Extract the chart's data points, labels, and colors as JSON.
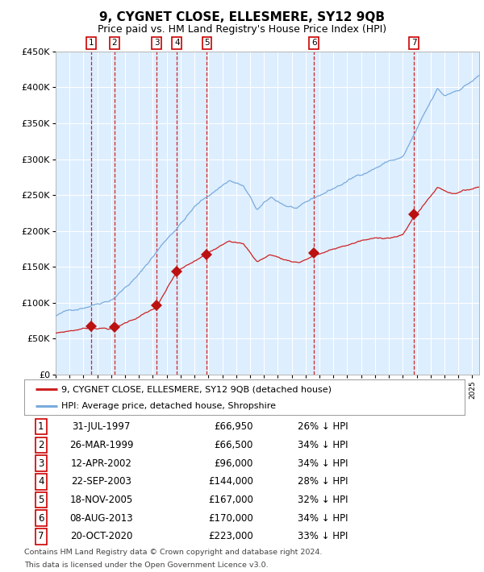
{
  "title": "9, CYGNET CLOSE, ELLESMERE, SY12 9QB",
  "subtitle": "Price paid vs. HM Land Registry's House Price Index (HPI)",
  "title_fontsize": 11,
  "subtitle_fontsize": 9,
  "bg_color": "#ddeeff",
  "ylim": [
    0,
    450000
  ],
  "yticks": [
    0,
    50000,
    100000,
    150000,
    200000,
    250000,
    300000,
    350000,
    400000,
    450000
  ],
  "ytick_labels": [
    "£0",
    "£50K",
    "£100K",
    "£150K",
    "£200K",
    "£250K",
    "£300K",
    "£350K",
    "£400K",
    "£450K"
  ],
  "hpi_color": "#7aabdc",
  "price_color": "#cc2222",
  "sale_marker_color": "#bb1111",
  "sale_dates_x": [
    1997.58,
    1999.23,
    2002.28,
    2003.73,
    2005.89,
    2013.6,
    2020.8
  ],
  "sale_prices_y": [
    66950,
    66500,
    96000,
    144000,
    167000,
    170000,
    223000
  ],
  "sale_labels": [
    "1",
    "2",
    "3",
    "4",
    "5",
    "6",
    "7"
  ],
  "sale_dates_str": [
    "31-JUL-1997",
    "26-MAR-1999",
    "12-APR-2002",
    "22-SEP-2003",
    "18-NOV-2005",
    "08-AUG-2013",
    "20-OCT-2020"
  ],
  "sale_prices_str": [
    "£66,950",
    "£66,500",
    "£96,000",
    "£144,000",
    "£167,000",
    "£170,000",
    "£223,000"
  ],
  "sale_pcts": [
    "26% ↓ HPI",
    "34% ↓ HPI",
    "34% ↓ HPI",
    "28% ↓ HPI",
    "32% ↓ HPI",
    "34% ↓ HPI",
    "33% ↓ HPI"
  ],
  "legend_red_label": "9, CYGNET CLOSE, ELLESMERE, SY12 9QB (detached house)",
  "legend_blue_label": "HPI: Average price, detached house, Shropshire",
  "footer_line1": "Contains HM Land Registry data © Crown copyright and database right 2024.",
  "footer_line2": "This data is licensed under the Open Government Licence v3.0.",
  "xmin": 1995.0,
  "xmax": 2025.5
}
